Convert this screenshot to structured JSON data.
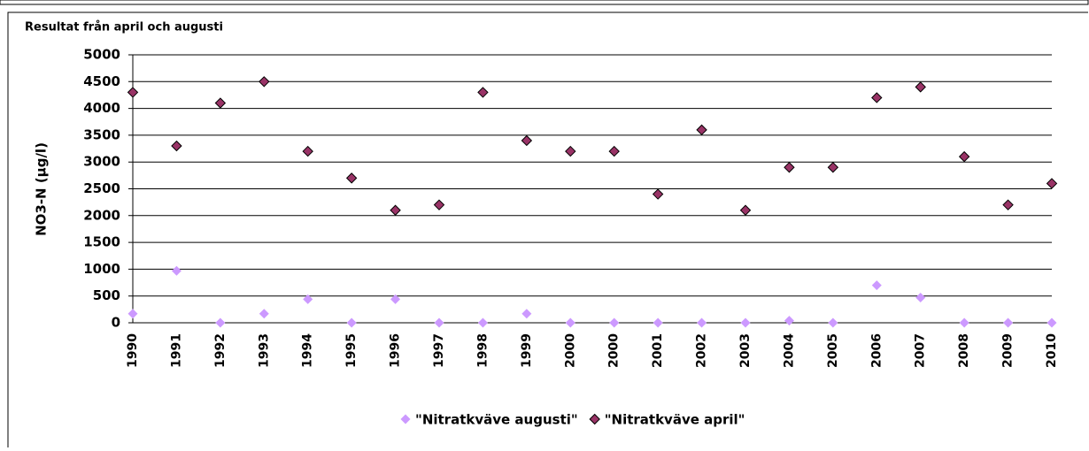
{
  "chart_data": {
    "type": "scatter",
    "title": "Resultat från april och augusti",
    "y_label": "NO3-N (µg/l)",
    "categories": [
      "1990",
      "1991",
      "1992",
      "1993",
      "1994",
      "1995",
      "1996",
      "1997",
      "1998",
      "1999",
      "2000",
      "2000",
      "2001",
      "2002",
      "2003",
      "2004",
      "2005",
      "2006",
      "2007",
      "2008",
      "2009",
      "2010"
    ],
    "series": [
      {
        "name": "\"Nitratkväve augusti\"",
        "color": "#cc99ff",
        "values": [
          170,
          970,
          0,
          170,
          440,
          0,
          440,
          0,
          0,
          170,
          0,
          0,
          0,
          0,
          0,
          40,
          0,
          700,
          470,
          0,
          0,
          0
        ]
      },
      {
        "name": "\"Nitratkväve april\"",
        "color": "#993366",
        "values": [
          4300,
          3300,
          4100,
          4500,
          3200,
          2700,
          2100,
          2200,
          4300,
          3400,
          3200,
          3200,
          2400,
          3600,
          2100,
          2900,
          2900,
          4200,
          4400,
          3100,
          2200,
          2600
        ]
      }
    ],
    "ylim": [
      0,
      5000
    ],
    "yticks": [
      0,
      500,
      1000,
      1500,
      2000,
      2500,
      3000,
      3500,
      4000,
      4500,
      5000
    ],
    "grid": true,
    "legend": "bottom"
  }
}
